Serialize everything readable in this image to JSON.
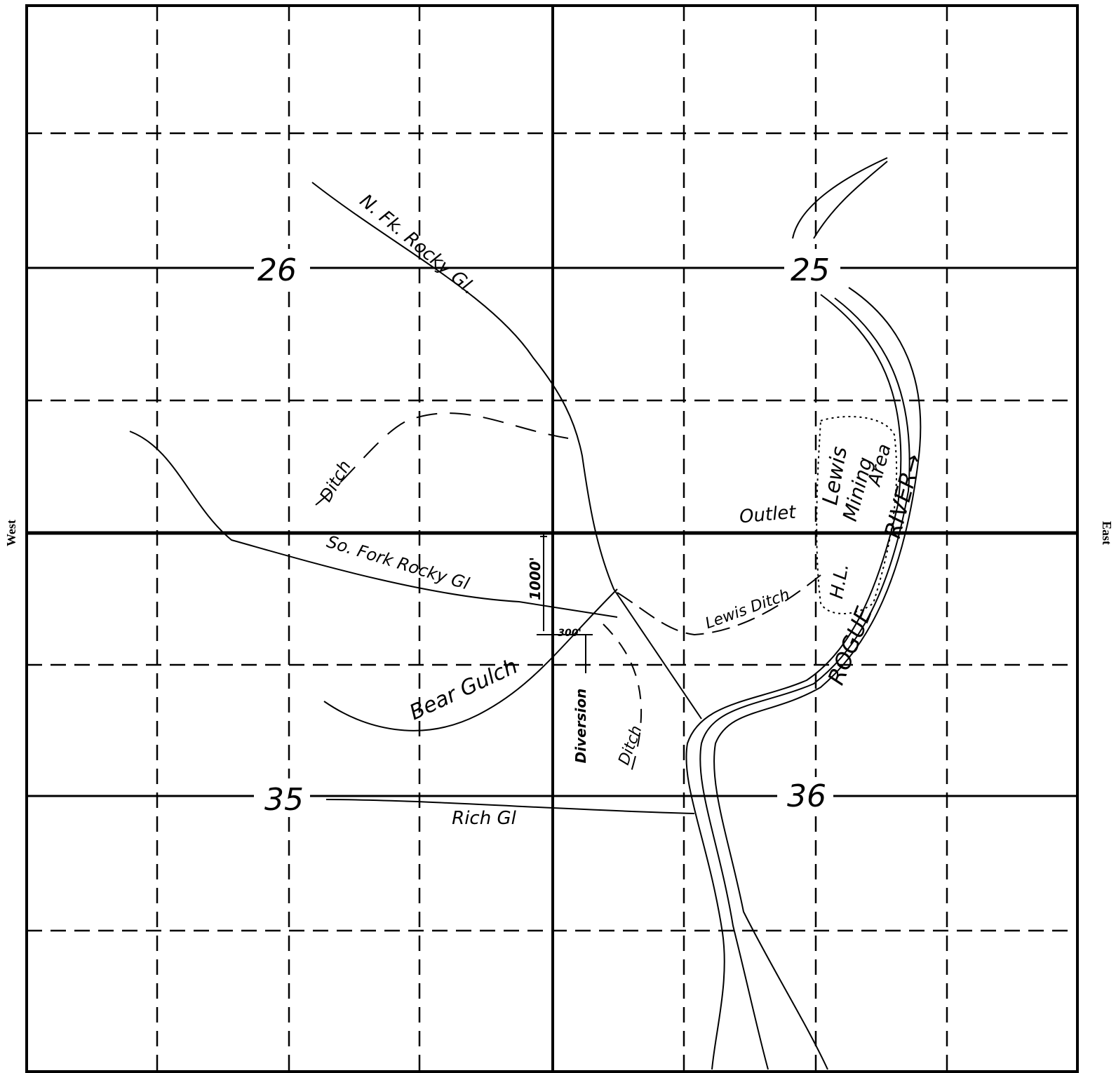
{
  "sides": {
    "west": "West",
    "east": "East"
  },
  "sections": [
    "26",
    "25",
    "35",
    "36"
  ],
  "labels": {
    "north_fork": "N. Fk. Rocky Gl.",
    "upper_ditch": "Ditch",
    "south_fork": "So. Fork Rocky Gl",
    "distance_north": "1000'",
    "distance_east": "300'",
    "bear_gulch": "Bear Gulch",
    "diversion": "Diversion",
    "lower_ditch": "Ditch",
    "rich_gulch": "Rich Gl",
    "outlet": "Outlet",
    "lewis_ditch": "Lewis Ditch",
    "lewis": "Lewis",
    "hl": "H.L.",
    "mining": "Mining",
    "area": "Area",
    "rogue": "ROGUE",
    "river": "RIVER→"
  }
}
